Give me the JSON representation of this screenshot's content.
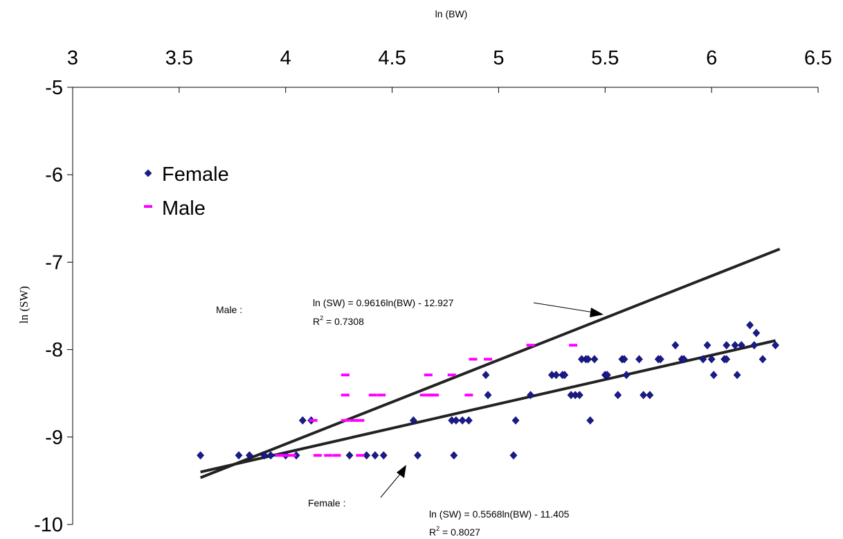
{
  "chart_data": {
    "type": "scatter",
    "xlabel": "ln (BW)",
    "ylabel": "ln (SW)",
    "xlim": [
      3,
      6.5
    ],
    "ylim": [
      -10,
      -5
    ],
    "xticks": [
      3,
      3.5,
      4,
      4.5,
      5,
      5.5,
      6,
      6.5
    ],
    "xtick_labels": [
      "3",
      "3.5",
      "4",
      "4.5",
      "5",
      "5.5",
      "6",
      "6.5"
    ],
    "yticks": [
      -5,
      -6,
      -7,
      -8,
      -9,
      -10
    ],
    "ytick_labels": [
      "-5",
      "-6",
      "-7",
      "-8",
      "-9",
      "-10"
    ],
    "x_axis_position": "top",
    "grid": false,
    "legend": {
      "placement": "upper-left",
      "entries": [
        {
          "label": "Female",
          "marker": "diamond",
          "color": "#1a1a8c"
        },
        {
          "label": "Male",
          "marker": "dash",
          "color": "#ff00ff"
        }
      ]
    },
    "series": [
      {
        "name": "Female",
        "marker": "diamond",
        "color": "#1a1a8c",
        "x": [
          3.6,
          3.78,
          3.83,
          3.9,
          3.93,
          4.0,
          4.05,
          4.08,
          4.12,
          4.3,
          4.38,
          4.42,
          4.46,
          4.6,
          4.62,
          4.78,
          4.79,
          4.8,
          4.83,
          4.86,
          4.94,
          4.95,
          5.07,
          5.08,
          5.15,
          5.25,
          5.27,
          5.3,
          5.31,
          5.34,
          5.36,
          5.38,
          5.39,
          5.41,
          5.42,
          5.43,
          5.45,
          5.5,
          5.51,
          5.56,
          5.58,
          5.59,
          5.6,
          5.66,
          5.68,
          5.71,
          5.75,
          5.76,
          5.83,
          5.86,
          5.87,
          5.96,
          5.98,
          6.0,
          6.01,
          6.06,
          6.07,
          6.07,
          6.11,
          6.12,
          6.14,
          6.18,
          6.2,
          6.21,
          6.24,
          6.3
        ],
        "y": [
          -9.21,
          -9.21,
          -9.21,
          -9.21,
          -9.21,
          -9.21,
          -9.21,
          -8.81,
          -8.81,
          -9.21,
          -9.21,
          -9.21,
          -9.21,
          -8.81,
          -9.21,
          -8.81,
          -9.21,
          -8.81,
          -8.81,
          -8.81,
          -8.29,
          -8.52,
          -9.21,
          -8.81,
          -8.52,
          -8.29,
          -8.29,
          -8.29,
          -8.29,
          -8.52,
          -8.52,
          -8.52,
          -8.11,
          -8.11,
          -8.11,
          -8.81,
          -8.11,
          -8.29,
          -8.29,
          -8.52,
          -8.11,
          -8.11,
          -8.29,
          -8.11,
          -8.52,
          -8.52,
          -8.11,
          -8.11,
          -7.95,
          -8.11,
          -8.11,
          -8.11,
          -7.95,
          -8.11,
          -8.29,
          -8.11,
          -8.11,
          -7.95,
          -7.95,
          -8.29,
          -7.95,
          -7.72,
          -7.95,
          -7.81,
          -8.11,
          -7.95
        ]
      },
      {
        "name": "Male",
        "marker": "dash",
        "color": "#ff00ff",
        "x": [
          3.97,
          4.0,
          4.03,
          4.13,
          4.15,
          4.2,
          4.24,
          4.28,
          4.28,
          4.28,
          4.32,
          4.35,
          4.35,
          4.41,
          4.45,
          4.65,
          4.67,
          4.68,
          4.69,
          4.7,
          4.78,
          4.86,
          4.88,
          4.95,
          5.15,
          5.35
        ],
        "y": [
          -9.21,
          -9.21,
          -9.21,
          -8.81,
          -9.21,
          -9.21,
          -9.21,
          -8.29,
          -8.52,
          -8.81,
          -8.81,
          -9.21,
          -8.81,
          -8.52,
          -8.52,
          -8.52,
          -8.29,
          -8.52,
          -8.52,
          -8.52,
          -8.29,
          -8.52,
          -8.11,
          -8.11,
          -7.95,
          -7.95
        ]
      }
    ],
    "trendlines": [
      {
        "series": "Male",
        "slope": 0.9616,
        "intercept": -12.927,
        "x_range": [
          3.6,
          6.32
        ],
        "color": "#222222"
      },
      {
        "series": "Female",
        "slope": 0.5568,
        "intercept": -11.405,
        "x_range": [
          3.6,
          6.3
        ],
        "color": "#222222"
      }
    ],
    "annotations": {
      "male_label": "Male  :",
      "male_equation": "ln (SW) = 0.9616ln(BW) - 12.927",
      "male_r2_prefix": "R",
      "male_r2_sup": "2",
      "male_r2_value": " = 0.7308",
      "female_label": "Female :",
      "female_equation": "ln (SW) = 0.5568ln(BW) - 11.405",
      "female_r2_prefix": "R",
      "female_r2_sup": "2",
      "female_r2_value": " = 0.8027"
    }
  }
}
